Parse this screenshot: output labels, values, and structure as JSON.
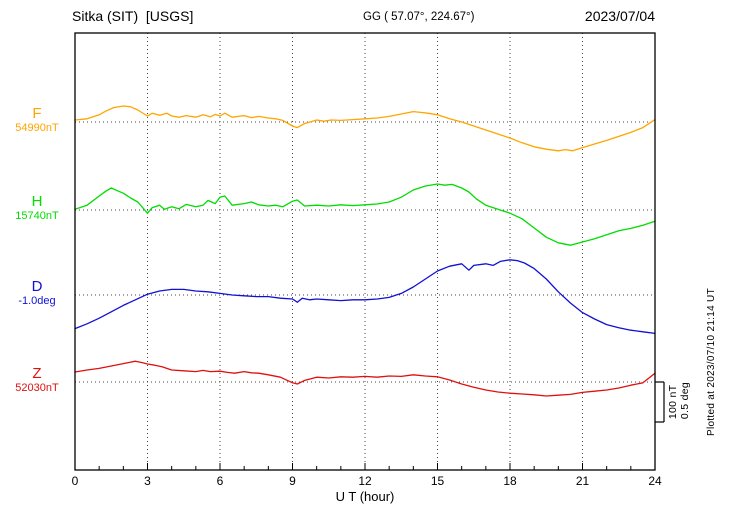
{
  "header": {
    "station": "Sitka (SIT)  [USGS]",
    "coords": "GG ( 57.07°, 224.67°)",
    "date": "2023/07/04"
  },
  "footer": {
    "plotted_at": "Plotted at 2023/07/10 21:14 UT"
  },
  "chart_data": {
    "type": "line",
    "title": "Sitka (SIT) [USGS] magnetogram for 2023/07/04",
    "xlabel": "U T (hour)",
    "x_range": [
      0,
      24
    ],
    "x_ticks": [
      0,
      3,
      6,
      9,
      12,
      15,
      18,
      21,
      24
    ],
    "grid": "dotted vertical lines every 3 hours; dotted horizontal baseline per channel",
    "legend_position": "left margin channel labels",
    "scale": {
      "nt_label": "100 nT",
      "deg_label": "0.5 deg",
      "nT_per_division": 100,
      "deg_per_division": 0.5
    },
    "series_note": "points are [UT hour, offset from channel baseline in that channel's unit]",
    "series": [
      {
        "name": "F",
        "baseline_label": "54990nT",
        "baseline_value": 54990,
        "unit": "nT",
        "color": "#ffa500",
        "points": [
          [
            0,
            5
          ],
          [
            0.5,
            8
          ],
          [
            1,
            18
          ],
          [
            1.3,
            28
          ],
          [
            1.6,
            36
          ],
          [
            2,
            40
          ],
          [
            2.3,
            38
          ],
          [
            2.6,
            30
          ],
          [
            3,
            15
          ],
          [
            3.2,
            22
          ],
          [
            3.5,
            17
          ],
          [
            3.8,
            22
          ],
          [
            4,
            15
          ],
          [
            4.3,
            12
          ],
          [
            4.6,
            16
          ],
          [
            5,
            12
          ],
          [
            5.3,
            18
          ],
          [
            5.6,
            13
          ],
          [
            5.8,
            19
          ],
          [
            6,
            15
          ],
          [
            6.2,
            22
          ],
          [
            6.5,
            12
          ],
          [
            7,
            16
          ],
          [
            7.3,
            11
          ],
          [
            7.6,
            14
          ],
          [
            8,
            10
          ],
          [
            8.3,
            8
          ],
          [
            8.6,
            4
          ],
          [
            9,
            -10
          ],
          [
            9.2,
            -14
          ],
          [
            9.5,
            -4
          ],
          [
            10,
            5
          ],
          [
            10.3,
            2
          ],
          [
            10.6,
            5
          ],
          [
            11,
            4
          ],
          [
            11.5,
            6
          ],
          [
            12,
            8
          ],
          [
            12.5,
            10
          ],
          [
            13,
            14
          ],
          [
            13.5,
            20
          ],
          [
            14,
            26
          ],
          [
            14.3,
            24
          ],
          [
            14.6,
            22
          ],
          [
            15,
            18
          ],
          [
            15.5,
            8
          ],
          [
            16,
            0
          ],
          [
            16.5,
            -10
          ],
          [
            17,
            -20
          ],
          [
            17.5,
            -30
          ],
          [
            18,
            -40
          ],
          [
            18.5,
            -52
          ],
          [
            19,
            -62
          ],
          [
            19.5,
            -68
          ],
          [
            20,
            -72
          ],
          [
            20.3,
            -69
          ],
          [
            20.6,
            -72
          ],
          [
            21,
            -64
          ],
          [
            21.5,
            -55
          ],
          [
            22,
            -46
          ],
          [
            22.5,
            -36
          ],
          [
            23,
            -26
          ],
          [
            23.5,
            -14
          ],
          [
            24,
            6
          ]
        ]
      },
      {
        "name": "H",
        "baseline_label": "15740nT",
        "baseline_value": 15740,
        "unit": "nT",
        "color": "#00dd00",
        "points": [
          [
            0,
            2
          ],
          [
            0.5,
            12
          ],
          [
            1,
            35
          ],
          [
            1.3,
            48
          ],
          [
            1.5,
            55
          ],
          [
            1.8,
            47
          ],
          [
            2,
            42
          ],
          [
            2.3,
            30
          ],
          [
            2.6,
            20
          ],
          [
            3,
            -8
          ],
          [
            3.2,
            6
          ],
          [
            3.5,
            12
          ],
          [
            3.7,
            2
          ],
          [
            4,
            8
          ],
          [
            4.3,
            3
          ],
          [
            4.6,
            14
          ],
          [
            5,
            8
          ],
          [
            5.3,
            12
          ],
          [
            5.5,
            24
          ],
          [
            5.8,
            16
          ],
          [
            6,
            32
          ],
          [
            6.2,
            35
          ],
          [
            6.5,
            12
          ],
          [
            7,
            16
          ],
          [
            7.3,
            20
          ],
          [
            7.6,
            13
          ],
          [
            8,
            10
          ],
          [
            8.3,
            12
          ],
          [
            8.6,
            8
          ],
          [
            9,
            22
          ],
          [
            9.2,
            25
          ],
          [
            9.5,
            10
          ],
          [
            10,
            12
          ],
          [
            10.5,
            10
          ],
          [
            11,
            13
          ],
          [
            11.5,
            11
          ],
          [
            12,
            13
          ],
          [
            12.5,
            15
          ],
          [
            13,
            20
          ],
          [
            13.5,
            32
          ],
          [
            14,
            50
          ],
          [
            14.5,
            60
          ],
          [
            15,
            65
          ],
          [
            15.3,
            62
          ],
          [
            15.6,
            64
          ],
          [
            16,
            55
          ],
          [
            16.3,
            45
          ],
          [
            16.6,
            28
          ],
          [
            17,
            12
          ],
          [
            17.5,
            2
          ],
          [
            18,
            -8
          ],
          [
            18.5,
            -22
          ],
          [
            19,
            -45
          ],
          [
            19.5,
            -68
          ],
          [
            20,
            -82
          ],
          [
            20.5,
            -88
          ],
          [
            21,
            -80
          ],
          [
            21.5,
            -72
          ],
          [
            22,
            -62
          ],
          [
            22.5,
            -52
          ],
          [
            23,
            -46
          ],
          [
            23.5,
            -38
          ],
          [
            24,
            -28
          ]
        ]
      },
      {
        "name": "D",
        "baseline_label": "-1.0deg",
        "baseline_value": -1.0,
        "unit": "deg",
        "color": "#1010d6",
        "points": [
          [
            0,
            -0.42
          ],
          [
            0.5,
            -0.36
          ],
          [
            1,
            -0.29
          ],
          [
            1.5,
            -0.21
          ],
          [
            2,
            -0.13
          ],
          [
            2.5,
            -0.06
          ],
          [
            3,
            0.01
          ],
          [
            3.5,
            0.05
          ],
          [
            4,
            0.07
          ],
          [
            4.5,
            0.07
          ],
          [
            5,
            0.05
          ],
          [
            5.5,
            0.04
          ],
          [
            6,
            0.02
          ],
          [
            6.5,
            0
          ],
          [
            7,
            -0.01
          ],
          [
            7.5,
            -0.02
          ],
          [
            8,
            -0.02
          ],
          [
            8.5,
            -0.04
          ],
          [
            9,
            -0.05
          ],
          [
            9.2,
            -0.09
          ],
          [
            9.4,
            -0.04
          ],
          [
            9.7,
            -0.06
          ],
          [
            10,
            -0.05
          ],
          [
            10.5,
            -0.06
          ],
          [
            11,
            -0.07
          ],
          [
            11.5,
            -0.06
          ],
          [
            12,
            -0.06
          ],
          [
            12.5,
            -0.05
          ],
          [
            13,
            -0.03
          ],
          [
            13.5,
            0.02
          ],
          [
            14,
            0.1
          ],
          [
            14.5,
            0.2
          ],
          [
            15,
            0.3
          ],
          [
            15.5,
            0.36
          ],
          [
            16,
            0.39
          ],
          [
            16.3,
            0.31
          ],
          [
            16.5,
            0.37
          ],
          [
            17,
            0.39
          ],
          [
            17.3,
            0.37
          ],
          [
            17.6,
            0.42
          ],
          [
            18,
            0.44
          ],
          [
            18.3,
            0.43
          ],
          [
            18.6,
            0.4
          ],
          [
            19,
            0.33
          ],
          [
            19.5,
            0.2
          ],
          [
            20,
            0.04
          ],
          [
            20.5,
            -0.1
          ],
          [
            21,
            -0.22
          ],
          [
            21.5,
            -0.3
          ],
          [
            22,
            -0.37
          ],
          [
            22.5,
            -0.41
          ],
          [
            23,
            -0.44
          ],
          [
            23.5,
            -0.46
          ],
          [
            24,
            -0.48
          ]
        ]
      },
      {
        "name": "Z",
        "baseline_label": "52030nT",
        "baseline_value": 52030,
        "unit": "nT",
        "color": "#e01010",
        "points": [
          [
            0,
            25
          ],
          [
            0.5,
            30
          ],
          [
            1,
            34
          ],
          [
            1.5,
            40
          ],
          [
            2,
            46
          ],
          [
            2.5,
            52
          ],
          [
            2.8,
            48
          ],
          [
            3,
            45
          ],
          [
            3.3,
            42
          ],
          [
            3.6,
            38
          ],
          [
            4,
            30
          ],
          [
            4.5,
            28
          ],
          [
            5,
            26
          ],
          [
            5.3,
            29
          ],
          [
            5.6,
            26
          ],
          [
            6,
            27
          ],
          [
            6.3,
            24
          ],
          [
            6.6,
            22
          ],
          [
            7,
            26
          ],
          [
            7.3,
            23
          ],
          [
            7.6,
            22
          ],
          [
            8,
            18
          ],
          [
            8.5,
            12
          ],
          [
            9,
            -2
          ],
          [
            9.2,
            -5
          ],
          [
            9.5,
            4
          ],
          [
            10,
            12
          ],
          [
            10.5,
            10
          ],
          [
            11,
            13
          ],
          [
            11.5,
            12
          ],
          [
            12,
            14
          ],
          [
            12.5,
            12
          ],
          [
            13,
            15
          ],
          [
            13.5,
            14
          ],
          [
            14,
            18
          ],
          [
            14.5,
            15
          ],
          [
            15,
            13
          ],
          [
            15.5,
            5
          ],
          [
            16,
            -5
          ],
          [
            16.5,
            -13
          ],
          [
            17,
            -20
          ],
          [
            17.5,
            -25
          ],
          [
            18,
            -28
          ],
          [
            18.5,
            -30
          ],
          [
            19,
            -32
          ],
          [
            19.5,
            -35
          ],
          [
            20,
            -33
          ],
          [
            20.5,
            -31
          ],
          [
            21,
            -26
          ],
          [
            21.5,
            -23
          ],
          [
            22,
            -20
          ],
          [
            22.5,
            -15
          ],
          [
            23,
            -8
          ],
          [
            23.5,
            -2
          ],
          [
            24,
            22
          ]
        ]
      }
    ]
  }
}
